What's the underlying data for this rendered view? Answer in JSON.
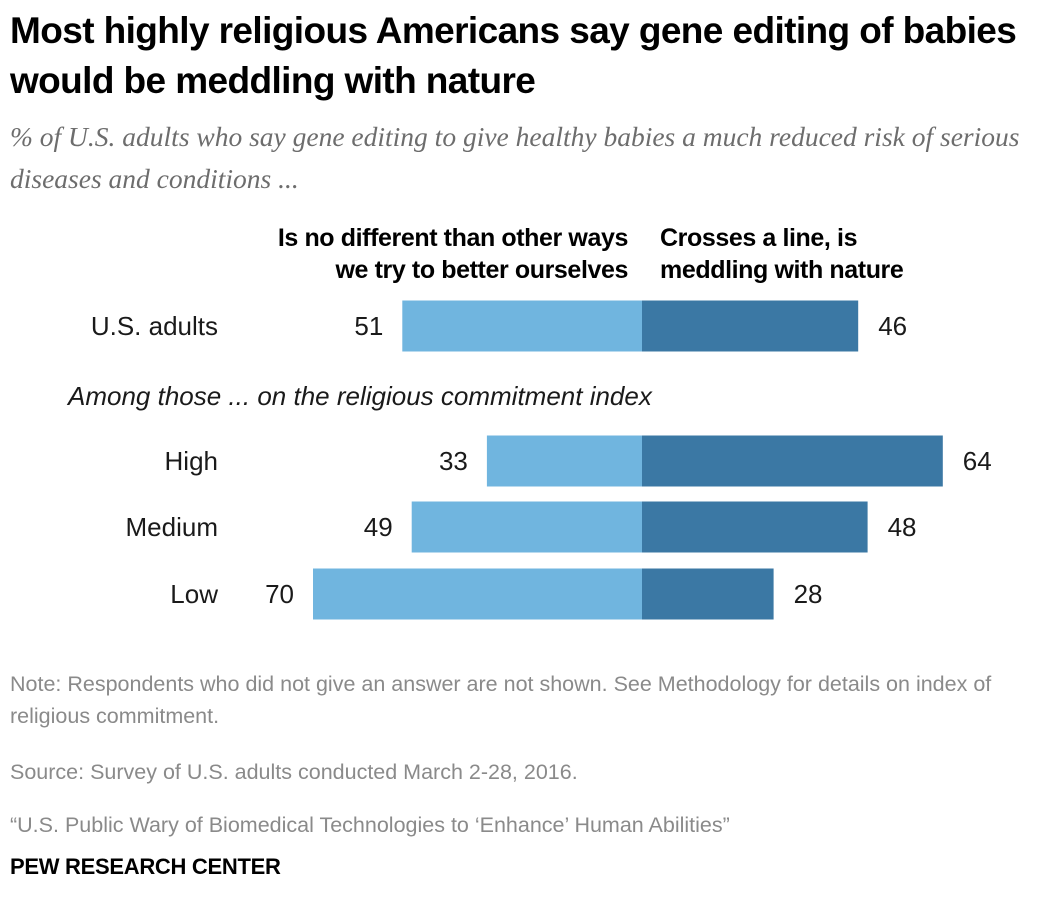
{
  "chart_data": {
    "type": "bar",
    "orientation": "horizontal-diverging",
    "title": "Most highly religious Americans say gene editing of babies would be meddling with nature",
    "subtitle": "% of U.S. adults who say gene editing to give healthy babies a much reduced risk of serious diseases and conditions ...",
    "section_label": "Among those ... on the religious commitment index",
    "categories": [
      "U.S. adults",
      "High",
      "Medium",
      "Low"
    ],
    "series": [
      {
        "name": "Is no different than other ways we try to better ourselves",
        "side": "left",
        "color": "#70b5df",
        "values": [
          51,
          33,
          49,
          70
        ]
      },
      {
        "name": "Crosses a line, is meddling with nature",
        "side": "right",
        "color": "#3b78a4",
        "values": [
          46,
          64,
          48,
          28
        ]
      }
    ]
  },
  "headers": {
    "left": [
      "Is no different than other ways",
      "we try to better ourselves"
    ],
    "right": [
      "Crosses a line, is",
      "meddling with nature"
    ]
  },
  "footer": {
    "note": "Note: Respondents who did not give an answer are not shown. See Methodology for details on index of religious commitment.",
    "source": "Source: Survey of U.S. adults conducted March 2-28, 2016.",
    "report": "“U.S. Public Wary of Biomedical Technologies to ‘Enhance’ Human Abilities”",
    "brand": "PEW RESEARCH CENTER"
  }
}
